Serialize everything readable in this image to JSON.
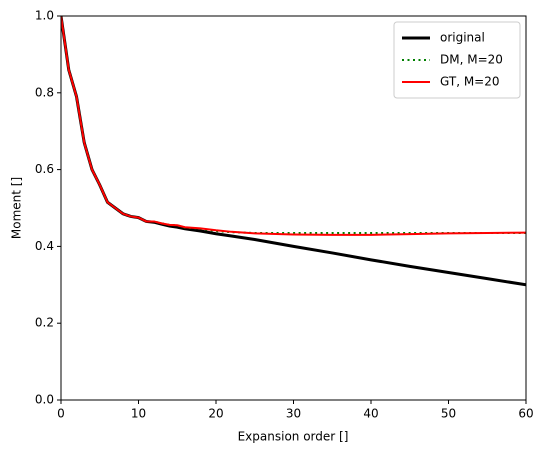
{
  "chart_data": {
    "type": "line",
    "xlabel": "Expansion order []",
    "ylabel": "Moment []",
    "x": [
      0,
      1,
      2,
      3,
      4,
      5,
      6,
      7,
      8,
      9,
      10,
      11,
      12,
      13,
      14,
      15,
      16,
      18,
      20,
      22,
      25,
      30,
      35,
      40,
      45,
      50,
      55,
      60
    ],
    "series": [
      {
        "name": "original",
        "color": "#000000",
        "linestyle": "solid",
        "linewidth": 3,
        "values": [
          1.0,
          0.86,
          0.79,
          0.67,
          0.6,
          0.56,
          0.515,
          0.5,
          0.485,
          0.478,
          0.475,
          0.465,
          0.463,
          0.458,
          0.453,
          0.45,
          0.446,
          0.44,
          0.433,
          0.427,
          0.418,
          0.4,
          0.383,
          0.365,
          0.348,
          0.332,
          0.316,
          0.3
        ]
      },
      {
        "name": "DM, M=20",
        "color": "#008000",
        "linestyle": "dotted",
        "linewidth": 2,
        "values": [
          1.0,
          0.86,
          0.79,
          0.67,
          0.6,
          0.56,
          0.515,
          0.5,
          0.485,
          0.478,
          0.475,
          0.465,
          0.465,
          0.46,
          0.456,
          0.455,
          0.449,
          0.446,
          0.44,
          0.437,
          0.435,
          0.435,
          0.435,
          0.435,
          0.435,
          0.435,
          0.435,
          0.435
        ]
      },
      {
        "name": "GT, M=20",
        "color": "#ff0000",
        "linestyle": "solid",
        "linewidth": 2,
        "values": [
          1.0,
          0.86,
          0.79,
          0.67,
          0.6,
          0.56,
          0.515,
          0.5,
          0.485,
          0.478,
          0.475,
          0.465,
          0.465,
          0.46,
          0.456,
          0.455,
          0.45,
          0.447,
          0.442,
          0.438,
          0.434,
          0.431,
          0.43,
          0.43,
          0.432,
          0.434,
          0.435,
          0.436
        ]
      }
    ],
    "xlim": [
      0,
      60
    ],
    "xticks": [
      0,
      10,
      20,
      30,
      40,
      50,
      60
    ],
    "ylim": [
      0,
      1
    ],
    "yticks": [
      {
        "value": 0,
        "label": "0.0"
      },
      {
        "value": 0.2,
        "label": "0.2"
      },
      {
        "value": 0.4,
        "label": "0.4"
      },
      {
        "value": 0.6,
        "label": "0.6"
      },
      {
        "value": 0.8,
        "label": "0.8"
      },
      {
        "value": 1,
        "label": "1.0"
      }
    ],
    "grid": false,
    "legend": "upper right"
  }
}
